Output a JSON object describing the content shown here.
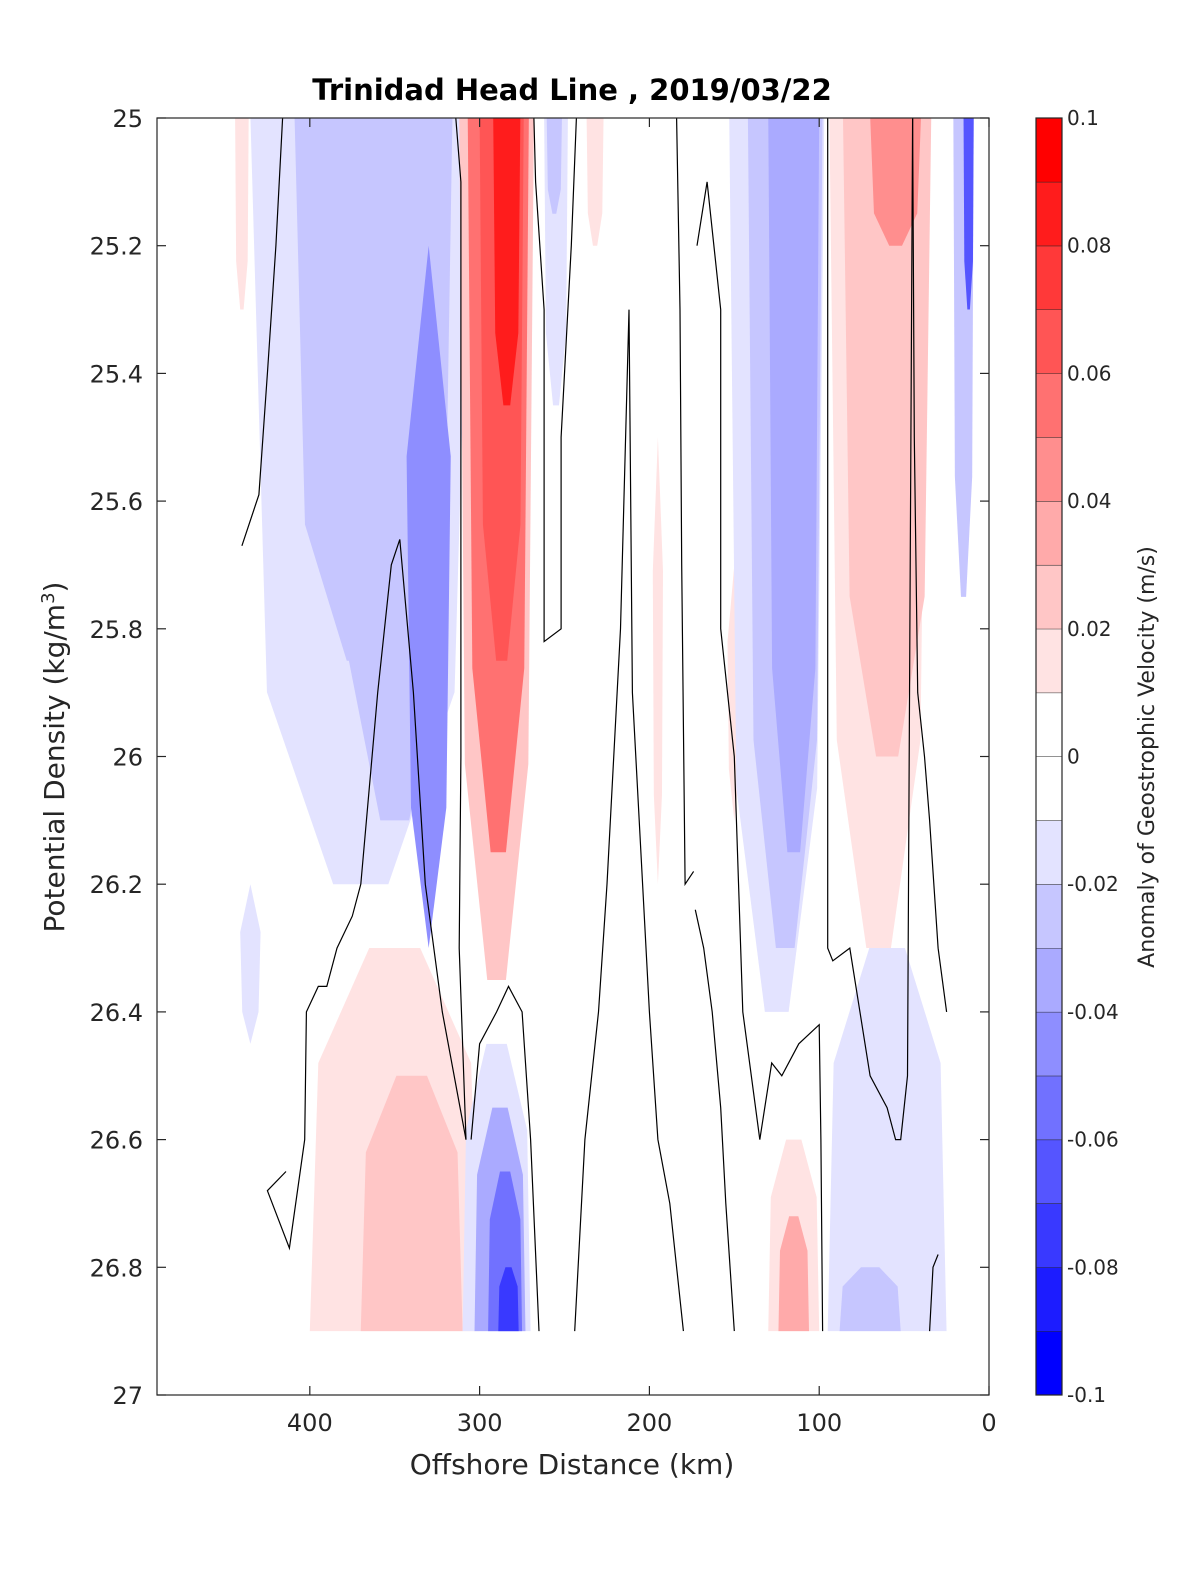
{
  "chart_data": {
    "type": "heatmap",
    "title": "Trinidad Head Line , 2019/03/22",
    "xlabel": "Offshore Distance (km)",
    "ylabel_main": "Potential Density (kg/m",
    "ylabel_sup": "3",
    "ylabel_end": ")",
    "colorbar_label": "Anomaly of Geostrophic Velocity (m/s)",
    "xlim": [
      490,
      0
    ],
    "ylim": [
      25,
      27
    ],
    "x_reversed": true,
    "y_reversed": true,
    "x_ticks": [
      400,
      300,
      200,
      100,
      0
    ],
    "x_tick_labels": [
      "400",
      "300",
      "200",
      "100",
      "0"
    ],
    "y_ticks": [
      25,
      25.2,
      25.4,
      25.6,
      25.8,
      26,
      26.2,
      26.4,
      26.6,
      26.8,
      27
    ],
    "y_tick_labels": [
      "25",
      "25.2",
      "25.4",
      "25.6",
      "25.8",
      "26",
      "26.2",
      "26.4",
      "26.6",
      "26.8",
      "27"
    ],
    "colorbar": {
      "range": [
        -0.1,
        0.1
      ],
      "levels": [
        -0.1,
        -0.09,
        -0.08,
        -0.07,
        -0.06,
        -0.05,
        -0.04,
        -0.03,
        -0.02,
        -0.01,
        0,
        0.01,
        0.02,
        0.03,
        0.04,
        0.05,
        0.06,
        0.07,
        0.08,
        0.09,
        0.1
      ],
      "tick_values": [
        0.1,
        0.08,
        0.06,
        0.04,
        0.02,
        0,
        -0.02,
        -0.04,
        -0.06,
        -0.08,
        -0.1
      ],
      "tick_labels": [
        "0.1",
        "0.08",
        "0.06",
        "0.04",
        "0.02",
        "0",
        "-0.02",
        "-0.04",
        "-0.06",
        "-0.08",
        "-0.1"
      ],
      "positive_color": "#ff0000",
      "negative_color": "#0000ff",
      "zero_color": "#ffffff"
    },
    "data_extent": {
      "x": [
        440,
        10
      ],
      "y": [
        25,
        26.9
      ]
    },
    "features": [
      {
        "x": 440,
        "y": [
          25.0,
          25.3
        ],
        "width": 8,
        "value": 0.012
      },
      {
        "x": 428,
        "y": [
          25.0,
          25.06
        ],
        "width": 6,
        "value": 0.012
      },
      {
        "x": 370,
        "y": [
          25.0,
          26.2
        ],
        "width": 130,
        "value": -0.014
      },
      {
        "x": 368,
        "y": [
          25.0,
          25.85
        ],
        "width": 82,
        "value": -0.022
      },
      {
        "x": 350,
        "y": [
          25.0,
          26.1
        ],
        "width": 68,
        "value": -0.03
      },
      {
        "x": 330,
        "y": [
          25.2,
          26.3
        ],
        "width": 26,
        "value": -0.04
      },
      {
        "x": 290,
        "y": [
          25.0,
          26.35
        ],
        "width": 44,
        "value": 0.03
      },
      {
        "x": 289,
        "y": [
          25.0,
          26.15
        ],
        "width": 36,
        "value": 0.05
      },
      {
        "x": 287,
        "y": [
          25.0,
          25.85
        ],
        "width": 26,
        "value": 0.068
      },
      {
        "x": 284,
        "y": [
          25.0,
          25.45
        ],
        "width": 16,
        "value": 0.085
      },
      {
        "x": 255,
        "y": [
          25.0,
          25.45
        ],
        "width": 14,
        "value": -0.014
      },
      {
        "x": 256,
        "y": [
          25.0,
          25.15
        ],
        "width": 9,
        "value": -0.025
      },
      {
        "x": 232,
        "y": [
          25.0,
          25.2
        ],
        "width": 10,
        "value": 0.012
      },
      {
        "x": 195,
        "y": [
          25.5,
          26.2
        ],
        "width": 6,
        "value": 0.011
      },
      {
        "x": 150,
        "y": [
          25.7,
          26.1
        ],
        "width": 8,
        "value": 0.011
      },
      {
        "x": 125,
        "y": [
          25.0,
          26.4
        ],
        "width": 56,
        "value": -0.016
      },
      {
        "x": 120,
        "y": [
          25.0,
          26.3
        ],
        "width": 44,
        "value": -0.026
      },
      {
        "x": 115,
        "y": [
          25.0,
          26.15
        ],
        "width": 30,
        "value": -0.036
      },
      {
        "x": 65,
        "y": [
          25.0,
          26.3
        ],
        "width": 58,
        "value": 0.012
      },
      {
        "x": 60,
        "y": [
          25.0,
          26.0
        ],
        "width": 52,
        "value": 0.022
      },
      {
        "x": 58,
        "y": [
          25.0,
          25.6
        ],
        "width": 44,
        "value": 0.03
      },
      {
        "x": 55,
        "y": [
          25.0,
          25.2
        ],
        "width": 30,
        "value": 0.045
      },
      {
        "x": 15,
        "y": [
          25.0,
          25.75
        ],
        "width": 12,
        "value": -0.03
      },
      {
        "x": 12,
        "y": [
          25.0,
          25.3
        ],
        "width": 6,
        "value": -0.065
      },
      {
        "x": 350,
        "y": [
          26.3,
          26.9
        ],
        "width": 100,
        "value": 0.012
      },
      {
        "x": 340,
        "y": [
          26.5,
          26.9
        ],
        "width": 60,
        "value": 0.02
      },
      {
        "x": 325,
        "y": [
          26.6,
          26.85
        ],
        "width": 22,
        "value": 0.028
      },
      {
        "x": 435,
        "y": [
          26.2,
          26.45
        ],
        "width": 12,
        "value": -0.012
      },
      {
        "x": 290,
        "y": [
          26.45,
          26.9
        ],
        "width": 40,
        "value": -0.018
      },
      {
        "x": 288,
        "y": [
          26.55,
          26.9
        ],
        "width": 30,
        "value": -0.035
      },
      {
        "x": 285,
        "y": [
          26.65,
          26.9
        ],
        "width": 20,
        "value": -0.055
      },
      {
        "x": 283,
        "y": [
          26.8,
          26.9
        ],
        "width": 12,
        "value": -0.07
      },
      {
        "x": 115,
        "y": [
          26.6,
          26.9
        ],
        "width": 30,
        "value": 0.015
      },
      {
        "x": 115,
        "y": [
          26.72,
          26.9
        ],
        "width": 18,
        "value": 0.032
      },
      {
        "x": 60,
        "y": [
          26.3,
          26.9
        ],
        "width": 70,
        "value": -0.012
      },
      {
        "x": 70,
        "y": [
          26.8,
          26.9
        ],
        "width": 36,
        "value": -0.02
      }
    ],
    "zero_contours": [
      [
        [
          440,
          25.67
        ],
        [
          430,
          25.59
        ],
        [
          425,
          25.4
        ],
        [
          420,
          25.2
        ],
        [
          416,
          25.0
        ]
      ],
      [
        [
          314,
          25.0
        ],
        [
          311,
          25.1
        ],
        [
          311,
          26.0
        ],
        [
          312,
          26.3
        ],
        [
          308,
          26.6
        ]
      ],
      [
        [
          268,
          25.0
        ],
        [
          267,
          25.1
        ],
        [
          262,
          25.3
        ],
        [
          262,
          25.82
        ],
        [
          252,
          25.8
        ],
        [
          252,
          25.5
        ],
        [
          246,
          25.2
        ],
        [
          243,
          25.0
        ]
      ],
      [
        [
          184,
          25.0
        ],
        [
          182,
          25.3
        ],
        [
          181,
          25.7
        ],
        [
          179,
          26.2
        ],
        [
          174,
          26.18
        ]
      ],
      [
        [
          172,
          25.2
        ],
        [
          166,
          25.1
        ],
        [
          158,
          25.3
        ],
        [
          158,
          25.8
        ],
        [
          150,
          26.0
        ],
        [
          145,
          26.4
        ],
        [
          135,
          26.6
        ]
      ],
      [
        [
          95,
          25.0
        ],
        [
          95,
          25.5
        ],
        [
          95,
          26.3
        ],
        [
          92,
          26.32
        ],
        [
          82,
          26.3
        ],
        [
          70,
          26.5
        ],
        [
          60,
          26.55
        ],
        [
          55,
          26.6
        ],
        [
          52,
          26.6
        ],
        [
          48,
          26.5
        ],
        [
          46,
          25.5
        ],
        [
          45,
          25.0
        ]
      ],
      [
        [
          414,
          26.65
        ],
        [
          425,
          26.68
        ],
        [
          412,
          26.77
        ],
        [
          403,
          26.6
        ],
        [
          402,
          26.4
        ],
        [
          395,
          26.36
        ],
        [
          390,
          26.36
        ],
        [
          384,
          26.3
        ],
        [
          375,
          26.25
        ],
        [
          370,
          26.2
        ],
        [
          360,
          25.9
        ],
        [
          352,
          25.7
        ],
        [
          347,
          25.66
        ],
        [
          339,
          25.9
        ],
        [
          332,
          26.2
        ],
        [
          322,
          26.4
        ],
        [
          308,
          26.6
        ]
      ],
      [
        [
          305,
          26.6
        ],
        [
          300,
          26.45
        ],
        [
          290,
          26.4
        ],
        [
          283,
          26.36
        ],
        [
          275,
          26.4
        ],
        [
          270,
          26.6
        ],
        [
          265,
          26.9
        ]
      ],
      [
        [
          244,
          26.9
        ],
        [
          238,
          26.6
        ],
        [
          230,
          26.4
        ],
        [
          225,
          26.2
        ],
        [
          217,
          25.8
        ],
        [
          212,
          25.3
        ],
        [
          210,
          25.9
        ],
        [
          206,
          26.1
        ],
        [
          200,
          26.4
        ],
        [
          195,
          26.6
        ],
        [
          188,
          26.7
        ],
        [
          180,
          26.9
        ]
      ],
      [
        [
          173,
          26.24
        ],
        [
          168,
          26.3
        ],
        [
          163,
          26.4
        ],
        [
          158,
          26.55
        ],
        [
          155,
          26.7
        ],
        [
          150,
          26.9
        ]
      ],
      [
        [
          135,
          26.6
        ],
        [
          128,
          26.48
        ],
        [
          122,
          26.5
        ],
        [
          112,
          26.45
        ],
        [
          100,
          26.42
        ],
        [
          99,
          26.6
        ],
        [
          98,
          26.9
        ]
      ],
      [
        [
          35,
          26.9
        ],
        [
          33,
          26.8
        ],
        [
          30,
          26.78
        ]
      ],
      [
        [
          45,
          25.0
        ],
        [
          44,
          25.5
        ],
        [
          42,
          25.9
        ],
        [
          38,
          26.0
        ],
        [
          35,
          26.1
        ],
        [
          30,
          26.3
        ],
        [
          25,
          26.4
        ]
      ]
    ]
  }
}
